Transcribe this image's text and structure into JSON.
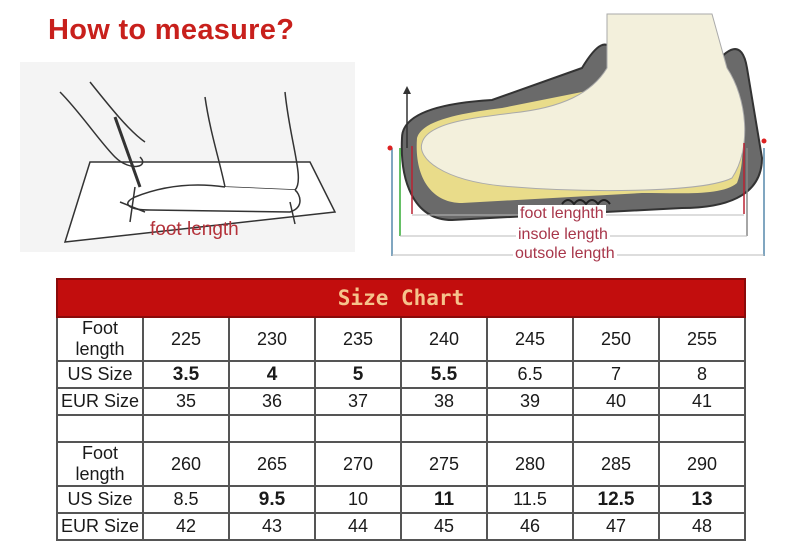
{
  "title": "How to measure?",
  "left_illustration": {
    "label": "foot length"
  },
  "right_illustration": {
    "labels": [
      "foot lenghth",
      "insole length",
      "outsole length"
    ]
  },
  "size_chart": {
    "title": "Size Chart",
    "colors": {
      "header_bg": "#c20d0d",
      "header_text": "#f6c38c"
    },
    "blocks": [
      {
        "rows": [
          {
            "label": "Foot length",
            "cells": [
              {
                "v": "225"
              },
              {
                "v": "230"
              },
              {
                "v": "235"
              },
              {
                "v": "240"
              },
              {
                "v": "245"
              },
              {
                "v": "250"
              },
              {
                "v": "255"
              }
            ]
          },
          {
            "label": "US Size",
            "cells": [
              {
                "v": "3.5",
                "bold": true
              },
              {
                "v": "4",
                "bold": true
              },
              {
                "v": "5",
                "bold": true
              },
              {
                "v": "5.5",
                "bold": true
              },
              {
                "v": "6.5"
              },
              {
                "v": "7"
              },
              {
                "v": "8"
              }
            ]
          },
          {
            "label": "EUR Size",
            "cells": [
              {
                "v": "35"
              },
              {
                "v": "36"
              },
              {
                "v": "37"
              },
              {
                "v": "38"
              },
              {
                "v": "39"
              },
              {
                "v": "40"
              },
              {
                "v": "41"
              }
            ]
          }
        ]
      },
      {
        "rows": [
          {
            "label": "Foot length",
            "cells": [
              {
                "v": "260"
              },
              {
                "v": "265"
              },
              {
                "v": "270"
              },
              {
                "v": "275"
              },
              {
                "v": "280"
              },
              {
                "v": "285"
              },
              {
                "v": "290"
              }
            ]
          },
          {
            "label": "US Size",
            "cells": [
              {
                "v": "8.5"
              },
              {
                "v": "9.5",
                "bold": true
              },
              {
                "v": "10"
              },
              {
                "v": "11",
                "bold": true
              },
              {
                "v": "11.5"
              },
              {
                "v": "12.5",
                "bold": true
              },
              {
                "v": "13",
                "bold": true
              }
            ]
          },
          {
            "label": "EUR Size",
            "cells": [
              {
                "v": "42"
              },
              {
                "v": "43"
              },
              {
                "v": "44"
              },
              {
                "v": "45"
              },
              {
                "v": "46"
              },
              {
                "v": "47"
              },
              {
                "v": "48"
              }
            ]
          }
        ]
      }
    ]
  }
}
